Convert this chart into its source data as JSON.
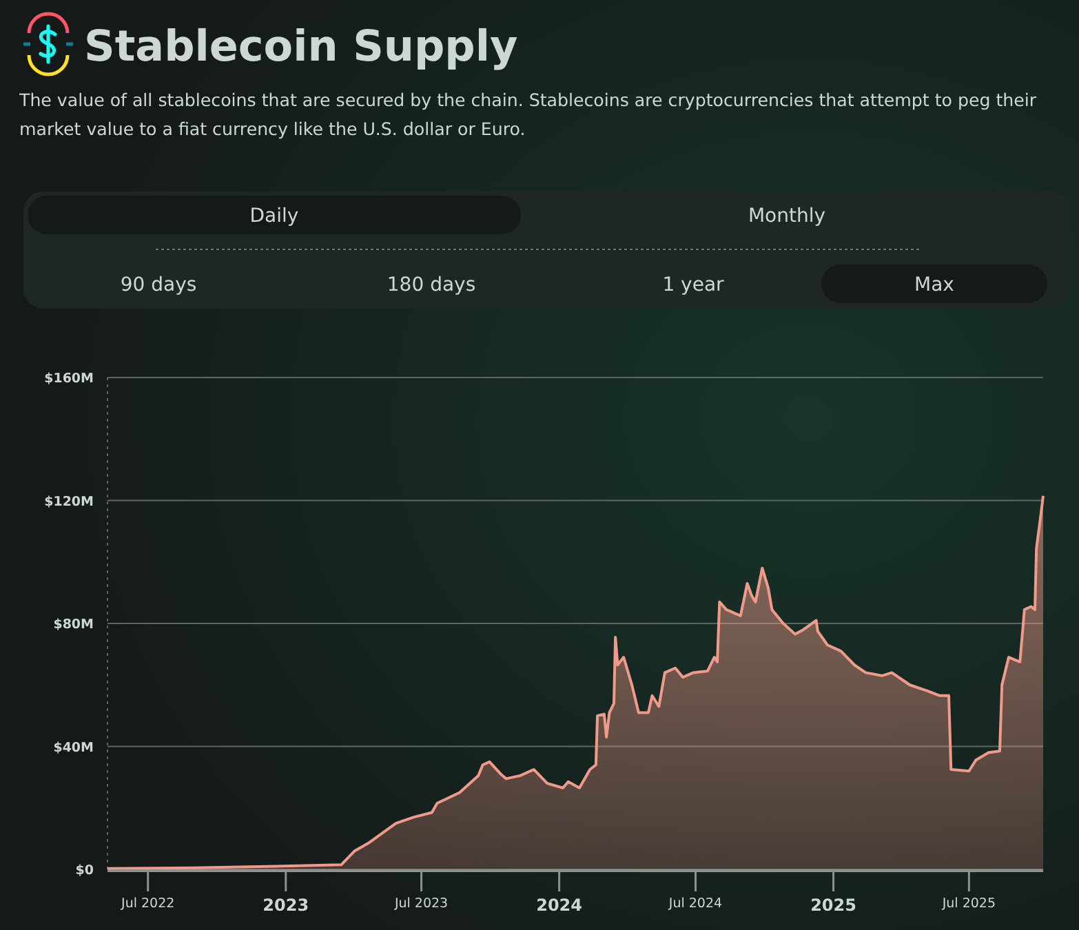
{
  "chart_data": {
    "type": "area",
    "title": "Stablecoin Supply",
    "subtitle": "The value of all stablecoins that are secured by the chain. Stablecoins are cryptocurrencies that attempt to peg their market value to a fiat currency like the U.S. dollar or Euro.",
    "annotations": [
      "Daily",
      "Monthly",
      "90 days",
      "180 days",
      "1 year",
      "Max"
    ],
    "x": [
      "2022-05-08",
      "2022-08-31",
      "2022-12-19",
      "2023-03-16",
      "2023-04-03",
      "2023-04-21",
      "2023-05-28",
      "2023-06-21",
      "2023-07-15",
      "2023-07-22",
      "2023-08-21",
      "2023-09-15",
      "2023-09-21",
      "2023-09-30",
      "2023-10-15",
      "2023-10-22",
      "2023-11-10",
      "2023-11-28",
      "2023-12-16",
      "2024-01-06",
      "2024-01-13",
      "2024-01-28",
      "2024-02-11",
      "2024-02-19",
      "2024-02-21",
      "2024-03-01",
      "2024-03-04",
      "2024-03-08",
      "2024-03-14",
      "2024-03-16",
      "2024-03-19",
      "2024-03-27",
      "2024-04-07",
      "2024-04-16",
      "2024-04-29",
      "2024-05-04",
      "2024-05-13",
      "2024-05-21",
      "2024-06-04",
      "2024-06-14",
      "2024-06-28",
      "2024-07-17",
      "2024-07-26",
      "2024-07-30",
      "2024-08-02",
      "2024-08-11",
      "2024-08-30",
      "2024-09-08",
      "2024-09-14",
      "2024-09-19",
      "2024-09-28",
      "2024-10-06",
      "2024-10-11",
      "2024-10-26",
      "2024-11-11",
      "2024-11-22",
      "2024-12-09",
      "2024-12-11",
      "2024-12-24",
      "2025-01-11",
      "2025-01-29",
      "2025-02-13",
      "2025-03-07",
      "2025-03-20",
      "2025-04-13",
      "2025-05-07",
      "2025-05-23",
      "2025-06-04",
      "2025-06-07",
      "2025-07-01",
      "2025-07-10",
      "2025-07-27",
      "2025-08-11",
      "2025-08-14",
      "2025-08-23",
      "2025-09-07",
      "2025-09-13",
      "2025-09-22",
      "2025-09-27",
      "2025-09-29",
      "2025-10-05",
      "2025-10-08"
    ],
    "series": [
      {
        "color": "#f19a8a",
        "values": [
          0.3,
          0.5,
          1,
          1.5,
          6,
          8.5,
          15,
          17,
          18.5,
          21.5,
          25,
          30.5,
          34,
          35,
          31,
          29.5,
          30.5,
          32.5,
          28,
          26.5,
          28.5,
          26.5,
          32.5,
          34,
          50,
          50.5,
          43,
          51,
          54,
          75.5,
          66.5,
          69,
          60,
          51,
          51,
          56.5,
          53,
          64,
          65.5,
          62.5,
          64,
          64.5,
          69,
          67.5,
          87,
          84.5,
          82.5,
          93,
          89,
          87,
          98,
          91.5,
          84.5,
          80,
          76.5,
          78,
          81,
          77.5,
          73,
          71,
          66.5,
          64,
          63,
          64,
          60,
          58,
          56.5,
          56.5,
          32.5,
          32,
          35.5,
          38,
          38.5,
          60,
          69,
          67.5,
          84.5,
          85.5,
          84.5,
          104.5,
          115.5,
          121.5
        ]
      }
    ],
    "xlim": [
      "2022-05-08",
      "2025-10-08"
    ],
    "xticks": [
      {
        "value": "2022-07-01",
        "label": "Jul 2022"
      },
      {
        "value": "2023-01-01",
        "label": "2023"
      },
      {
        "value": "2023-07-01",
        "label": "Jul 2023"
      },
      {
        "value": "2024-01-01",
        "label": "2024"
      },
      {
        "value": "2024-07-01",
        "label": "Jul 2024"
      },
      {
        "value": "2025-01-01",
        "label": "2025"
      },
      {
        "value": "2025-07-01",
        "label": "Jul 2025"
      }
    ],
    "ylim": [
      0,
      160
    ],
    "yticks": [
      {
        "value": 0,
        "label": "$0"
      },
      {
        "value": 40,
        "label": "$40M"
      },
      {
        "value": 80,
        "label": "$80M"
      },
      {
        "value": 120,
        "label": "$120M"
      },
      {
        "value": 160,
        "label": "$160M"
      }
    ],
    "grid": "y"
  }
}
